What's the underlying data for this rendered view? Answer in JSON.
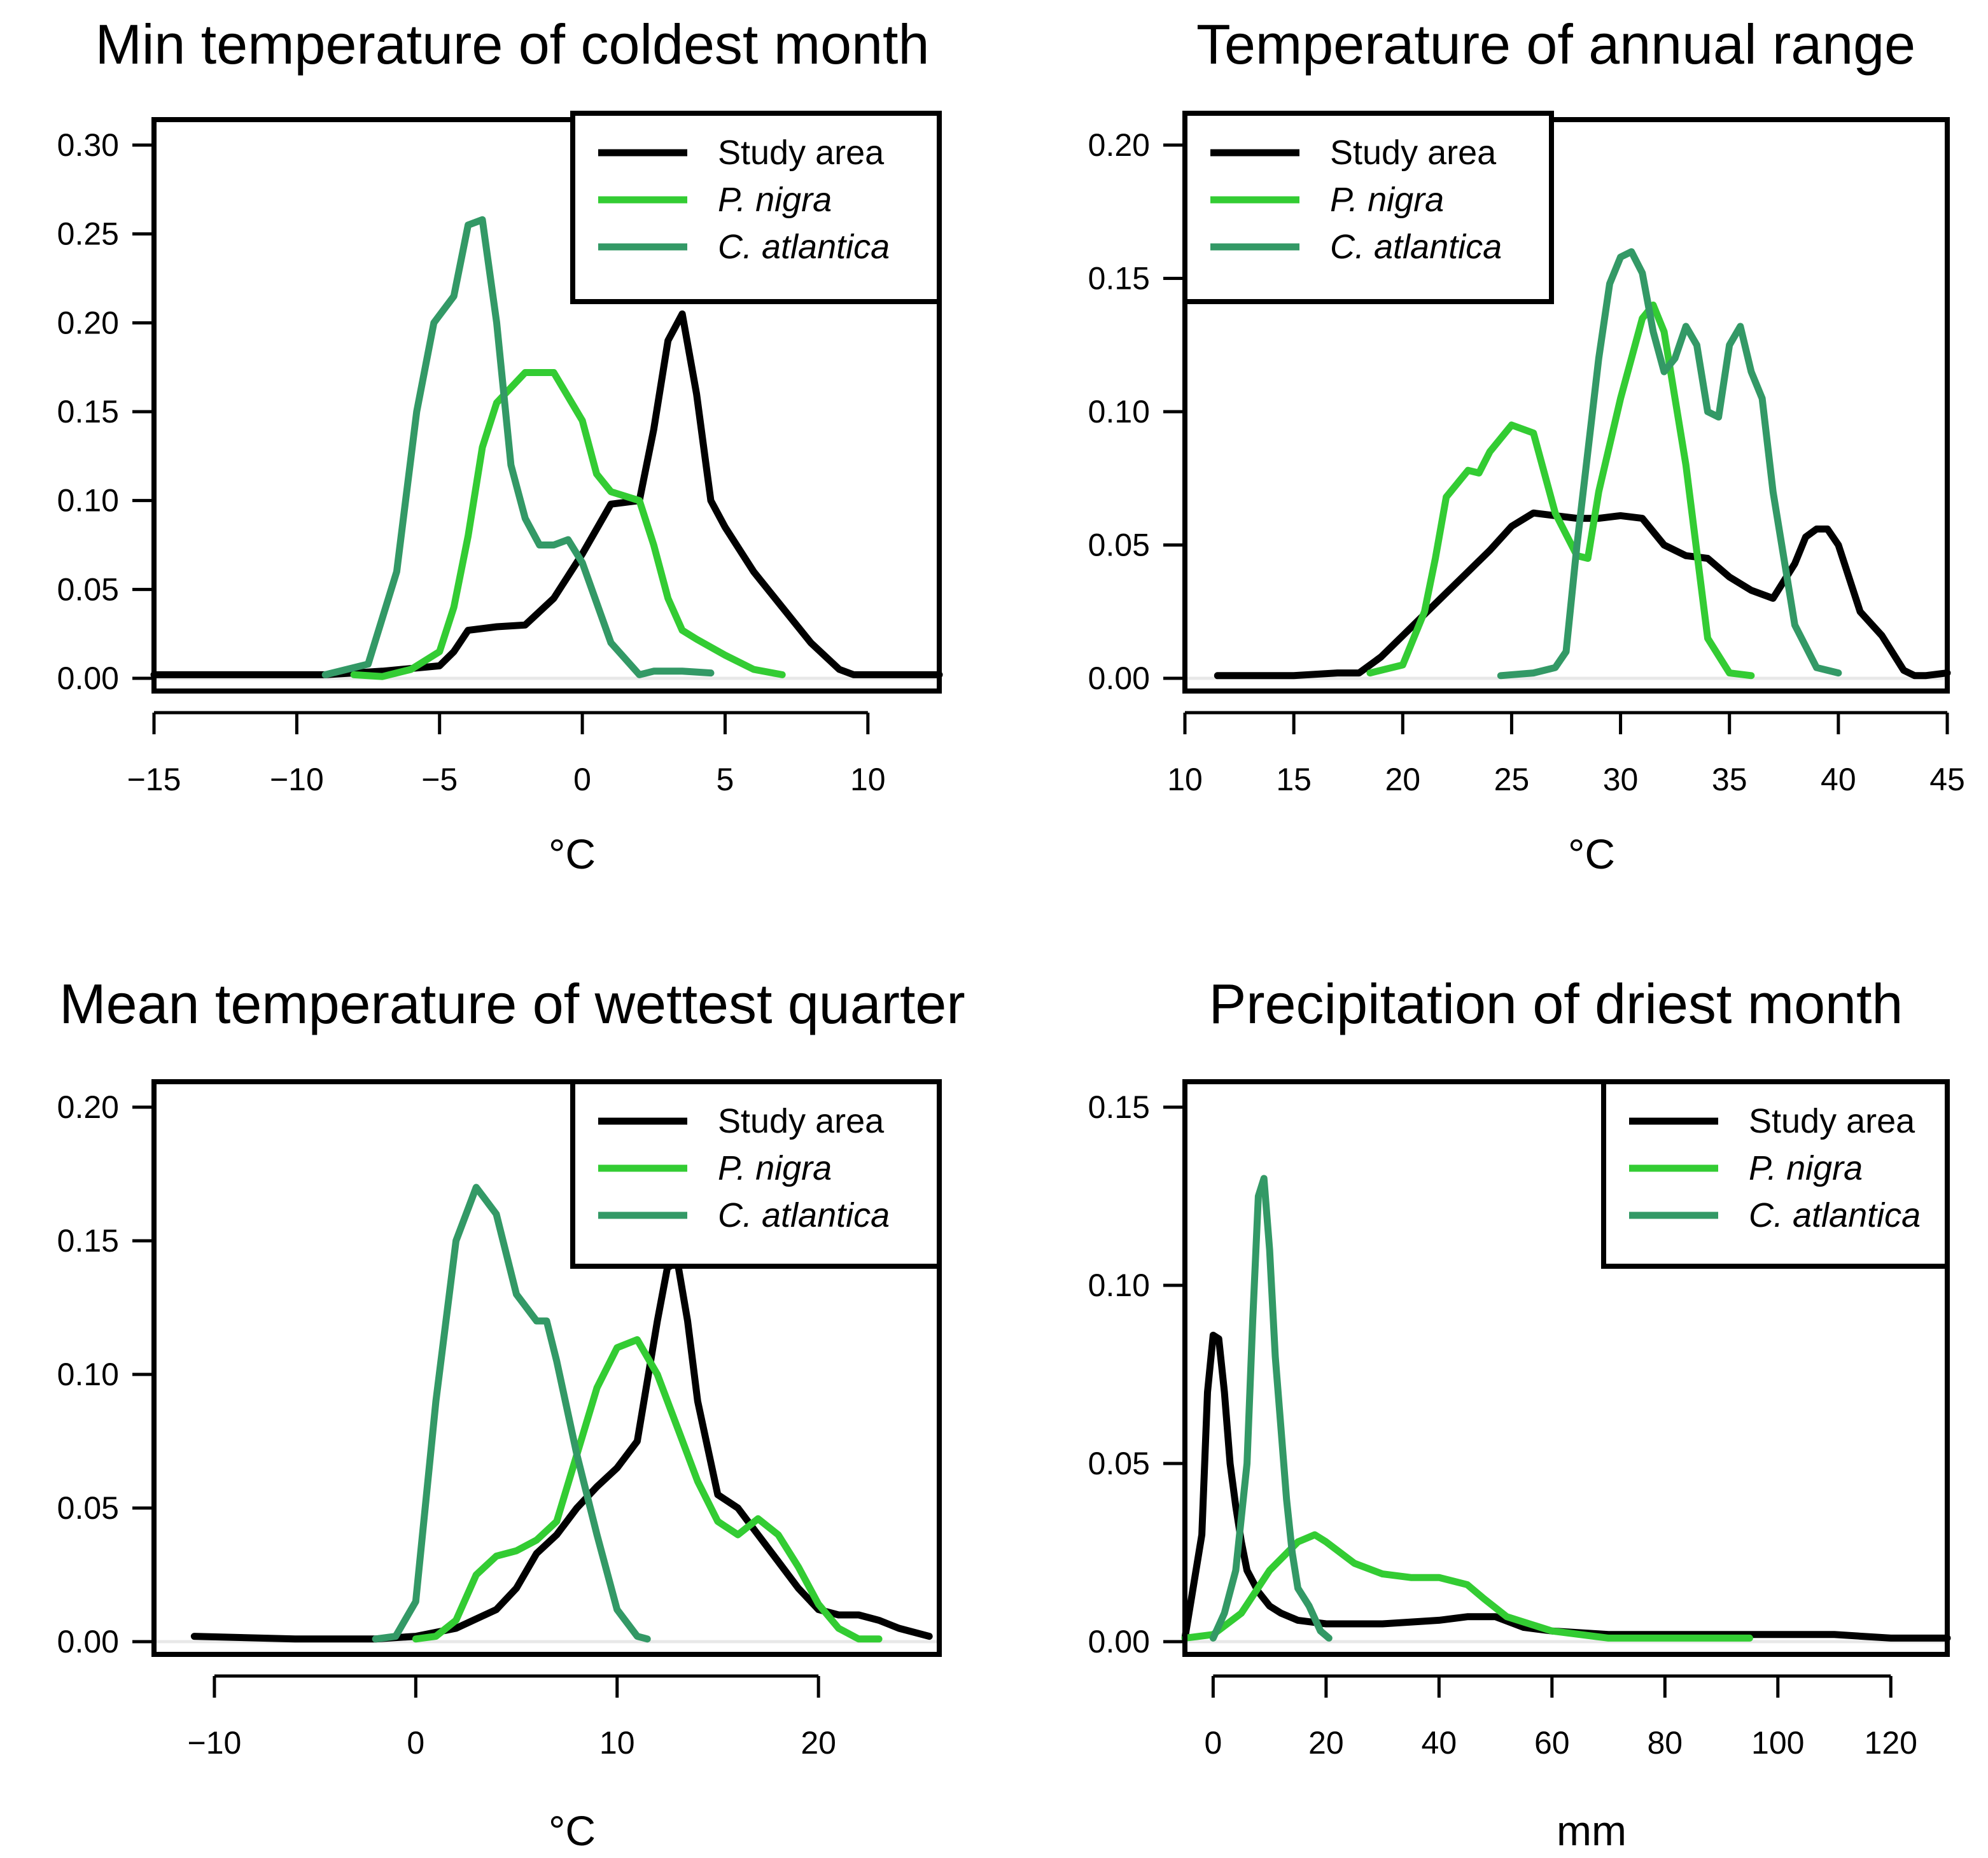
{
  "chart_data": [
    {
      "type": "line",
      "title": "Min temperature of coldest month",
      "xlabel": "°C",
      "ylabel": "",
      "xlim": [
        -15,
        12.5
      ],
      "ylim": [
        0,
        0.3
      ],
      "xticks": [
        -15,
        -10,
        -5,
        0,
        5,
        10
      ],
      "xtick_labels": [
        "−15",
        "−10",
        "−5",
        "0",
        "5",
        "10"
      ],
      "yticks": [
        0,
        0.05,
        0.1,
        0.15,
        0.2,
        0.25,
        0.3
      ],
      "ytick_labels": [
        "0.00",
        "0.05",
        "0.10",
        "0.15",
        "0.20",
        "0.25",
        "0.30"
      ],
      "legend_position": "top-right",
      "series": [
        {
          "name": "Study area",
          "color": "#000000",
          "x": [
            -15,
            -9,
            -7,
            -5,
            -4.5,
            -4,
            -3,
            -2,
            -1,
            0,
            1,
            2,
            2.5,
            3,
            3.5,
            4,
            4.5,
            5,
            6,
            7,
            8,
            9,
            9.5,
            10,
            12.5
          ],
          "y": [
            0.002,
            0.002,
            0.004,
            0.007,
            0.015,
            0.027,
            0.029,
            0.03,
            0.045,
            0.07,
            0.098,
            0.1,
            0.14,
            0.19,
            0.205,
            0.16,
            0.1,
            0.085,
            0.06,
            0.04,
            0.02,
            0.005,
            0.002,
            0.002,
            0.002
          ]
        },
        {
          "name": "P. nigra",
          "color": "#33cc33",
          "x": [
            -8,
            -7,
            -6,
            -5,
            -4.5,
            -4,
            -3.5,
            -3,
            -2,
            -1,
            0,
            0.5,
            1,
            2,
            2.5,
            3,
            3.5,
            4,
            5,
            6,
            7
          ],
          "y": [
            0.002,
            0.001,
            0.005,
            0.015,
            0.04,
            0.08,
            0.13,
            0.155,
            0.172,
            0.172,
            0.145,
            0.115,
            0.105,
            0.1,
            0.075,
            0.045,
            0.027,
            0.022,
            0.013,
            0.005,
            0.002
          ]
        },
        {
          "name": "C. atlantica",
          "color": "#339966",
          "x": [
            -9,
            -7.5,
            -6.5,
            -5.8,
            -5.2,
            -4.5,
            -4,
            -3.5,
            -3,
            -2.5,
            -2,
            -1.5,
            -1,
            -0.5,
            0,
            1,
            2,
            2.5,
            3.5,
            4.5
          ],
          "y": [
            0.002,
            0.008,
            0.06,
            0.15,
            0.2,
            0.215,
            0.255,
            0.258,
            0.2,
            0.12,
            0.09,
            0.075,
            0.075,
            0.078,
            0.065,
            0.02,
            0.002,
            0.004,
            0.004,
            0.003
          ]
        }
      ]
    },
    {
      "type": "line",
      "title": "Temperature of annual range",
      "xlabel": "°C",
      "ylabel": "",
      "xlim": [
        10,
        45
      ],
      "ylim": [
        0,
        0.2
      ],
      "xticks": [
        10,
        15,
        20,
        25,
        30,
        35,
        40,
        45
      ],
      "xtick_labels": [
        "10",
        "15",
        "20",
        "25",
        "30",
        "35",
        "40",
        "45"
      ],
      "yticks": [
        0,
        0.05,
        0.1,
        0.15,
        0.2
      ],
      "ytick_labels": [
        "0.00",
        "0.05",
        "0.10",
        "0.15",
        "0.20"
      ],
      "legend_position": "top-left",
      "series": [
        {
          "name": "Study area",
          "color": "#000000",
          "x": [
            11.5,
            15,
            17,
            18,
            19,
            20,
            21,
            22,
            23,
            24,
            25,
            26,
            27,
            28,
            29,
            30,
            31,
            32,
            33,
            34,
            35,
            36,
            37,
            38,
            38.5,
            39,
            39.5,
            40,
            41,
            42,
            43,
            43.5,
            44,
            45
          ],
          "y": [
            0.001,
            0.001,
            0.002,
            0.002,
            0.008,
            0.016,
            0.024,
            0.032,
            0.04,
            0.048,
            0.057,
            0.062,
            0.061,
            0.06,
            0.06,
            0.061,
            0.06,
            0.05,
            0.046,
            0.045,
            0.038,
            0.033,
            0.03,
            0.043,
            0.053,
            0.056,
            0.056,
            0.05,
            0.025,
            0.016,
            0.003,
            0.001,
            0.001,
            0.002
          ]
        },
        {
          "name": "P. nigra",
          "color": "#33cc33",
          "x": [
            18.5,
            20,
            21,
            21.5,
            22,
            23,
            23.5,
            24,
            25,
            26,
            27,
            28,
            28.5,
            29,
            30,
            31,
            31.5,
            32,
            33,
            34,
            35,
            36
          ],
          "y": [
            0.002,
            0.005,
            0.025,
            0.045,
            0.068,
            0.078,
            0.077,
            0.085,
            0.095,
            0.092,
            0.062,
            0.046,
            0.045,
            0.07,
            0.105,
            0.135,
            0.14,
            0.13,
            0.08,
            0.015,
            0.002,
            0.001
          ]
        },
        {
          "name": "C. atlantica",
          "color": "#339966",
          "x": [
            24.5,
            26,
            27,
            27.5,
            28,
            29,
            29.5,
            30,
            30.5,
            31,
            31.5,
            32,
            32.5,
            33,
            33.5,
            34,
            34.5,
            35,
            35.5,
            36,
            36.5,
            37,
            38,
            39,
            40
          ],
          "y": [
            0.001,
            0.002,
            0.004,
            0.01,
            0.05,
            0.12,
            0.148,
            0.158,
            0.16,
            0.152,
            0.13,
            0.115,
            0.12,
            0.132,
            0.125,
            0.1,
            0.098,
            0.125,
            0.132,
            0.115,
            0.105,
            0.07,
            0.02,
            0.004,
            0.002
          ]
        }
      ]
    },
    {
      "type": "line",
      "title": "Mean temperature of wettest quarter",
      "xlabel": "°C",
      "ylabel": "",
      "xlim": [
        -13,
        26
      ],
      "ylim": [
        0,
        0.2
      ],
      "xticks": [
        -10,
        0,
        10,
        20
      ],
      "xtick_labels": [
        "−10",
        "0",
        "10",
        "20"
      ],
      "yticks": [
        0,
        0.05,
        0.1,
        0.15,
        0.2
      ],
      "ytick_labels": [
        "0.00",
        "0.05",
        "0.10",
        "0.15",
        "0.20"
      ],
      "legend_position": "top-right",
      "series": [
        {
          "name": "Study area",
          "color": "#000000",
          "x": [
            -11,
            -6,
            -2,
            0,
            2,
            4,
            5,
            6,
            7,
            8,
            9,
            10,
            11,
            12,
            12.5,
            13,
            13.5,
            14,
            15,
            16,
            17,
            18,
            19,
            20,
            21,
            22,
            23,
            24,
            25.5
          ],
          "y": [
            0.002,
            0.001,
            0.001,
            0.002,
            0.005,
            0.012,
            0.02,
            0.033,
            0.04,
            0.05,
            0.058,
            0.065,
            0.075,
            0.12,
            0.14,
            0.142,
            0.12,
            0.09,
            0.055,
            0.05,
            0.04,
            0.03,
            0.02,
            0.012,
            0.01,
            0.01,
            0.008,
            0.005,
            0.002
          ]
        },
        {
          "name": "P. nigra",
          "color": "#33cc33",
          "x": [
            0,
            1,
            2,
            3,
            4,
            5,
            6,
            7,
            8,
            9,
            10,
            11,
            12,
            13,
            14,
            15,
            16,
            17,
            18,
            19,
            20,
            21,
            22,
            23
          ],
          "y": [
            0.001,
            0.002,
            0.008,
            0.025,
            0.032,
            0.034,
            0.038,
            0.045,
            0.07,
            0.095,
            0.11,
            0.113,
            0.1,
            0.08,
            0.06,
            0.045,
            0.04,
            0.046,
            0.04,
            0.028,
            0.014,
            0.005,
            0.001,
            0.001
          ]
        },
        {
          "name": "C. atlantica",
          "color": "#339966",
          "x": [
            -2,
            -1,
            0,
            1,
            2,
            3,
            4,
            5,
            6,
            6.5,
            7,
            8,
            9,
            10,
            11,
            11.5
          ],
          "y": [
            0.001,
            0.002,
            0.015,
            0.09,
            0.15,
            0.17,
            0.16,
            0.13,
            0.12,
            0.12,
            0.105,
            0.07,
            0.04,
            0.012,
            0.002,
            0.001
          ]
        }
      ]
    },
    {
      "type": "line",
      "title": "Precipitation of driest month",
      "xlabel": "mm",
      "ylabel": "",
      "xlim": [
        -5,
        130
      ],
      "ylim": [
        0,
        0.15
      ],
      "xticks": [
        0,
        20,
        40,
        60,
        80,
        100,
        120
      ],
      "xtick_labels": [
        "0",
        "20",
        "40",
        "60",
        "80",
        "100",
        "120"
      ],
      "yticks": [
        0,
        0.05,
        0.1,
        0.15
      ],
      "ytick_labels": [
        "0.00",
        "0.05",
        "0.10",
        "0.15"
      ],
      "legend_position": "top-right",
      "series": [
        {
          "name": "Study area",
          "color": "#000000",
          "x": [
            -5,
            -2,
            -1,
            0,
            1,
            2,
            3,
            4,
            5,
            6,
            8,
            10,
            12,
            15,
            20,
            30,
            40,
            45,
            50,
            55,
            60,
            70,
            80,
            90,
            100,
            110,
            120,
            130
          ],
          "y": [
            0.001,
            0.03,
            0.07,
            0.086,
            0.085,
            0.07,
            0.05,
            0.038,
            0.028,
            0.02,
            0.014,
            0.01,
            0.008,
            0.006,
            0.005,
            0.005,
            0.006,
            0.007,
            0.007,
            0.004,
            0.003,
            0.002,
            0.002,
            0.002,
            0.002,
            0.002,
            0.001,
            0.001
          ]
        },
        {
          "name": "P. nigra",
          "color": "#33cc33",
          "x": [
            -5,
            0,
            5,
            10,
            15,
            18,
            20,
            25,
            30,
            35,
            40,
            45,
            48,
            52,
            60,
            70,
            80,
            90,
            95
          ],
          "y": [
            0.001,
            0.002,
            0.008,
            0.02,
            0.028,
            0.03,
            0.028,
            0.022,
            0.019,
            0.018,
            0.018,
            0.016,
            0.012,
            0.007,
            0.003,
            0.001,
            0.001,
            0.001,
            0.001
          ]
        },
        {
          "name": "C. atlantica",
          "color": "#339966",
          "x": [
            0,
            2,
            4,
            6,
            7,
            8,
            9,
            10,
            11,
            12,
            13,
            14,
            15,
            17,
            19,
            20.5
          ],
          "y": [
            0.001,
            0.008,
            0.02,
            0.05,
            0.09,
            0.125,
            0.13,
            0.11,
            0.08,
            0.06,
            0.04,
            0.025,
            0.015,
            0.01,
            0.003,
            0.001
          ]
        }
      ]
    }
  ]
}
